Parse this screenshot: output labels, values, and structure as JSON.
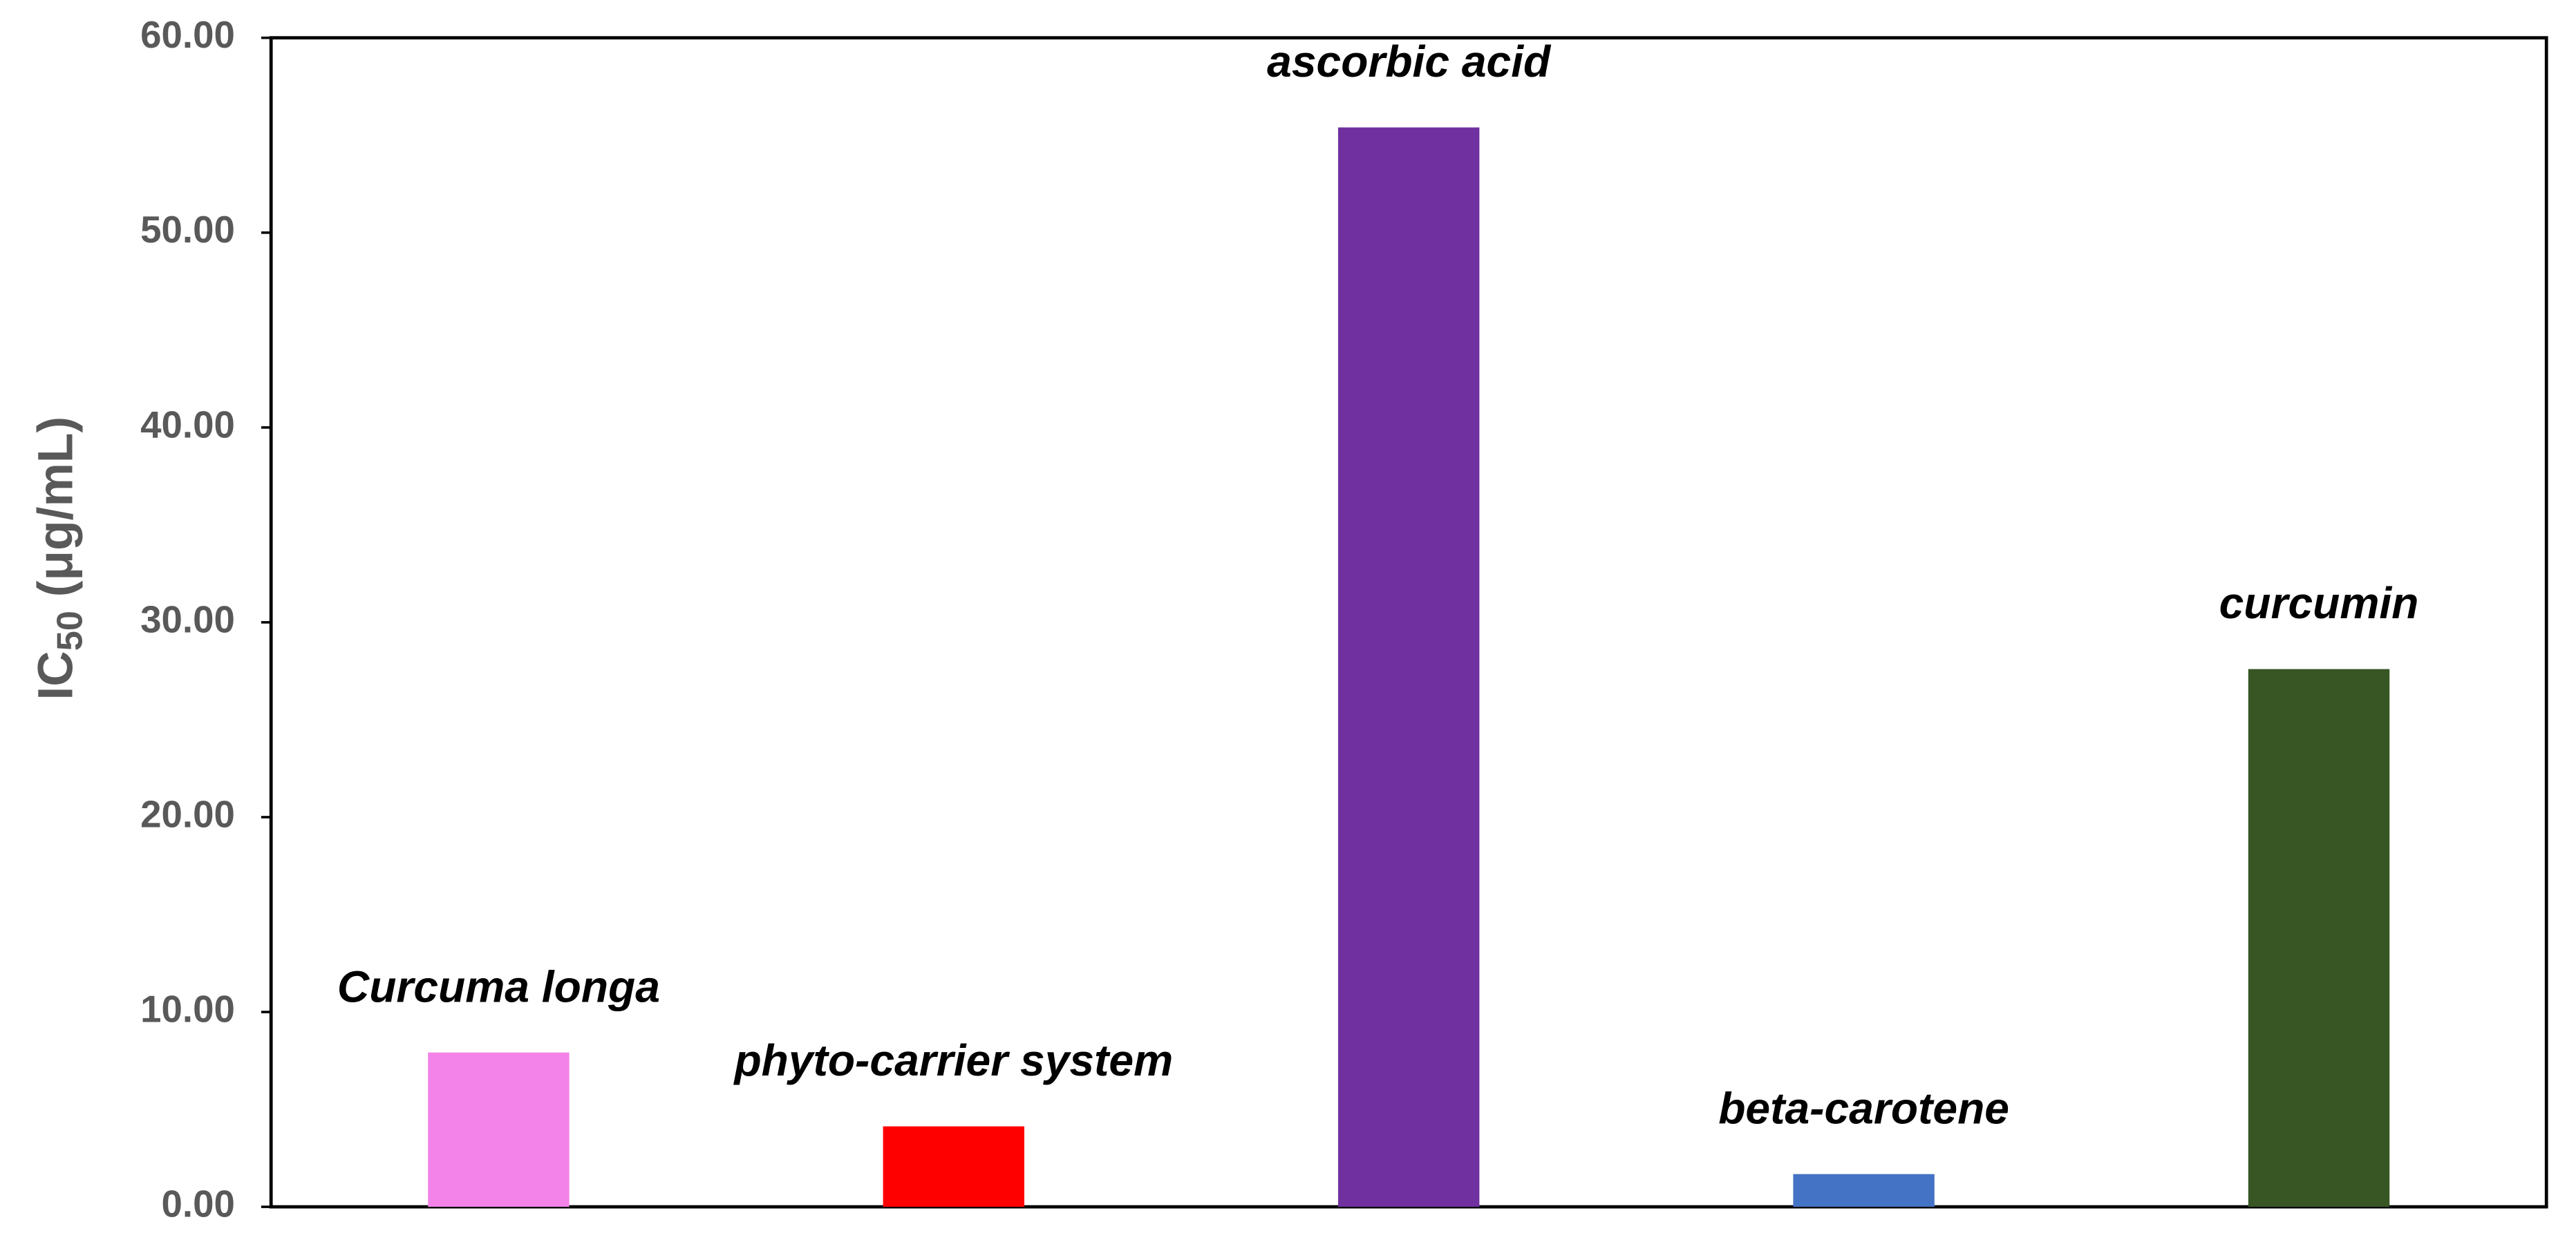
{
  "chart_data": {
    "type": "bar",
    "y_label": [
      "IC",
      "50",
      " (μg/mL)"
    ],
    "categories": [
      "Curcuma longa",
      "phyto-carrier system",
      "ascorbic acid",
      "beta-carotene",
      "curcumin"
    ],
    "values": [
      7.92,
      4.13,
      55.4,
      1.68,
      27.6
    ],
    "colors": [
      "#f383e8",
      "#ff0000",
      "#7030a0",
      "#4472c4",
      "#375623"
    ],
    "ylim": [
      0,
      60
    ],
    "yticks": [
      {
        "value": 0,
        "label": "0.00"
      },
      {
        "value": 10,
        "label": "10.00"
      },
      {
        "value": 20,
        "label": "20.00"
      },
      {
        "value": 30,
        "label": "30.00"
      },
      {
        "value": 40,
        "label": "40.00"
      },
      {
        "value": 50,
        "label": "50.00"
      },
      {
        "value": 60,
        "label": "60.00"
      }
    ],
    "grid": false
  }
}
